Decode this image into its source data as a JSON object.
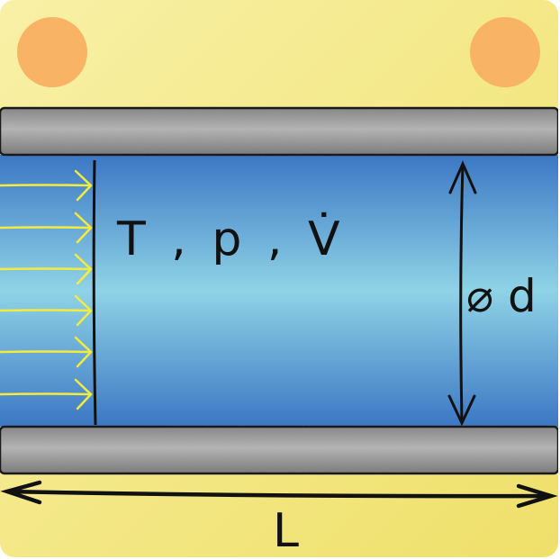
{
  "labels": {
    "flow": "T , p , V̇",
    "diameter": "⌀ d",
    "length": "L"
  },
  "colors": {
    "background_light": "#f8f0a6",
    "background_dark": "#efe06a",
    "pipe_wall": "#a6a6a6",
    "fluid_light": "#8fd3e6",
    "fluid_dark": "#3c77c4",
    "flow_arrows": "#f4ec3c",
    "mount_dot": "#f8b464",
    "ink": "#111111"
  },
  "icons": {
    "mount_left": "orange-circle",
    "mount_right": "orange-circle",
    "flow": "arrow-right-icon",
    "diameter_dimension": "double-arrow-vertical-icon",
    "length_dimension": "double-arrow-horizontal-icon"
  }
}
